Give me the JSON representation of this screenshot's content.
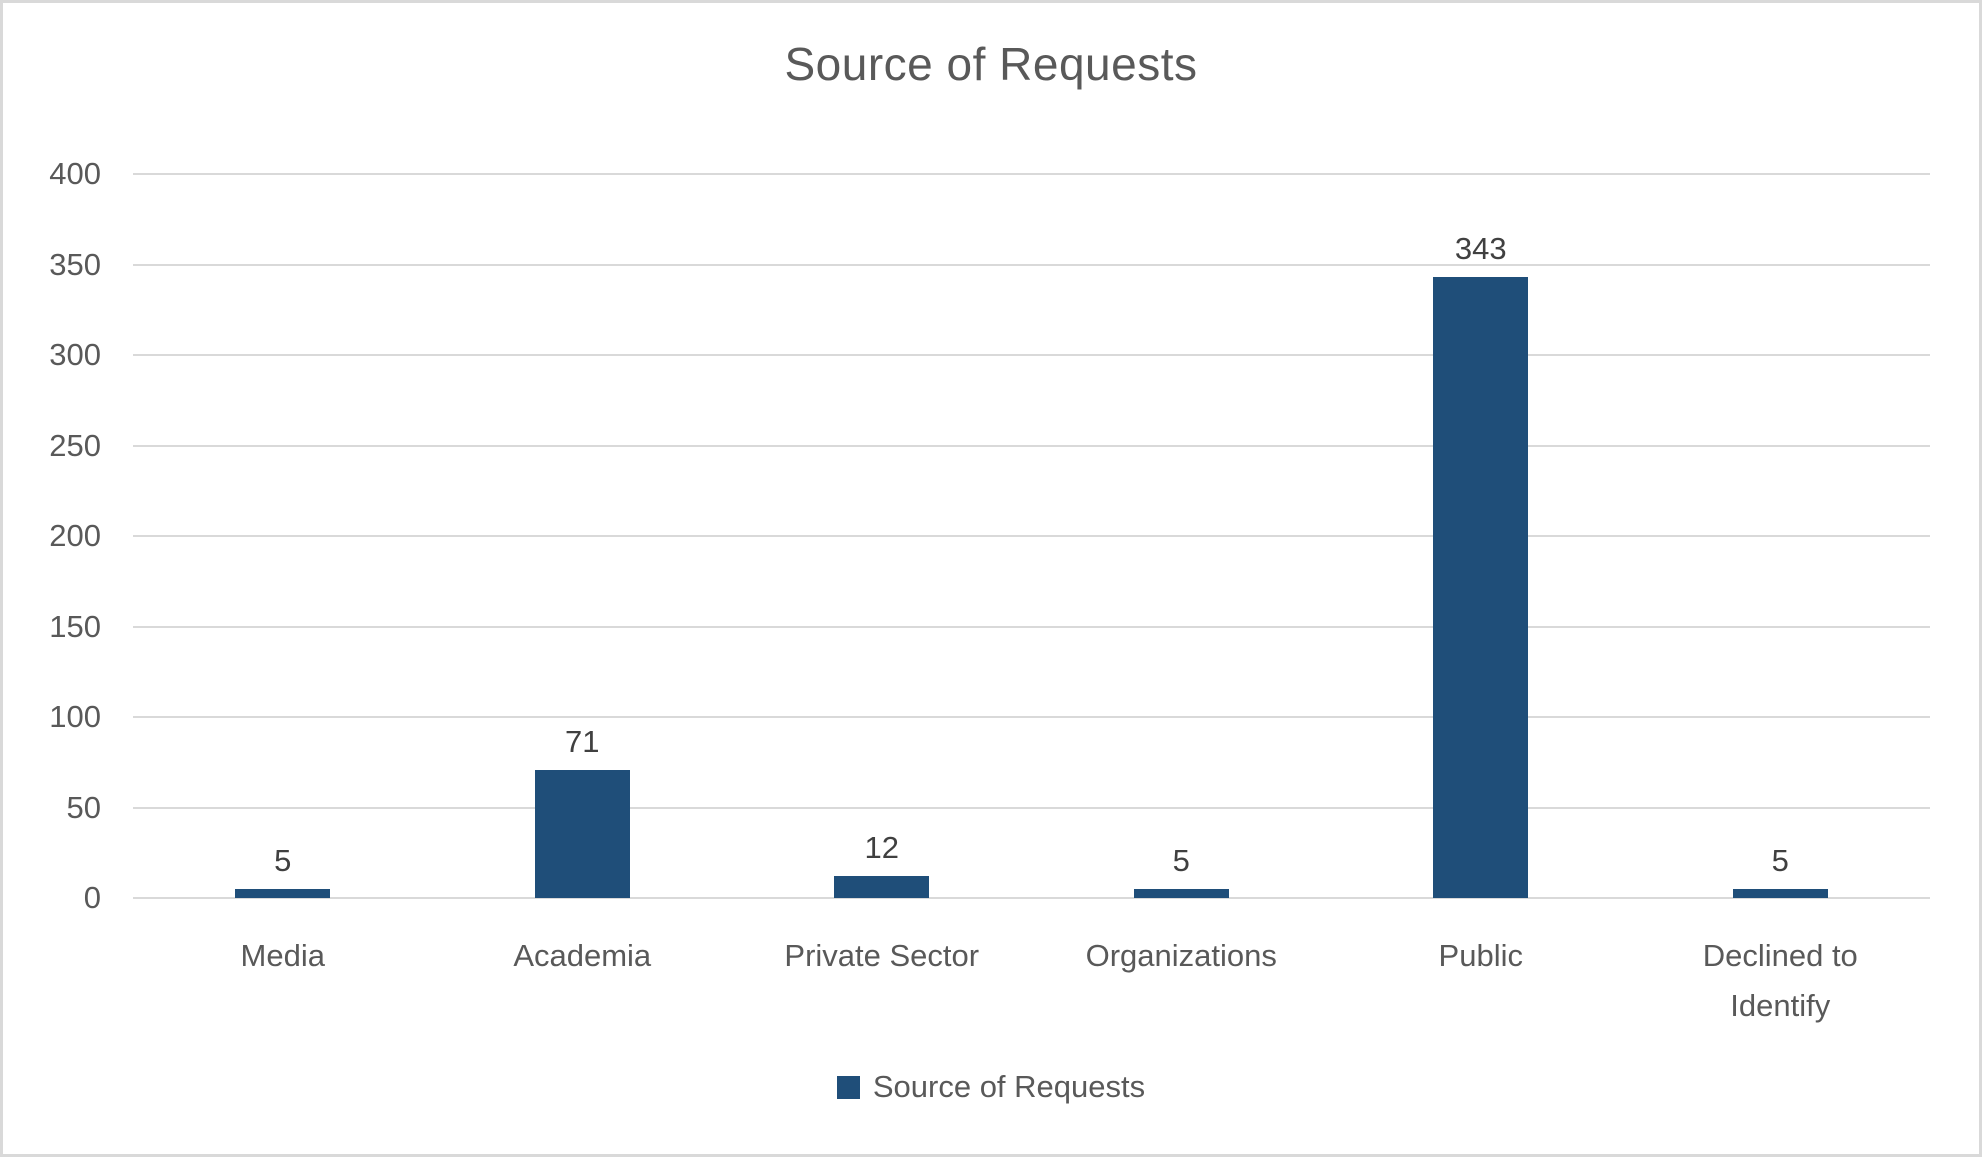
{
  "title": "Source of Requests",
  "legend": {
    "label": "Source of Requests"
  },
  "colors": {
    "bar": "#1f4e79",
    "gridline": "#d9d9d9",
    "axis_text": "#595959",
    "data_label_text": "#404040",
    "title_text": "#595959",
    "frame_border": "#d9d9d9",
    "background": "#ffffff"
  },
  "chart_data": {
    "type": "bar",
    "title": "Source of Requests",
    "categories": [
      "Media",
      "Academia",
      "Private Sector",
      "Organizations",
      "Public",
      "Declined to Identify"
    ],
    "values": [
      5,
      71,
      12,
      5,
      343,
      5
    ],
    "data_labels": [
      "5",
      "71",
      "12",
      "5",
      "343",
      "5"
    ],
    "xlabel": "",
    "ylabel": "",
    "ylim": [
      0,
      400
    ],
    "ytick_step": 50,
    "yticks": [
      0,
      50,
      100,
      150,
      200,
      250,
      300,
      350,
      400
    ],
    "grid": "horizontal-only",
    "bar_color": "#1f4e79",
    "legend_position": "bottom",
    "legend_entries": [
      "Source of Requests"
    ]
  }
}
